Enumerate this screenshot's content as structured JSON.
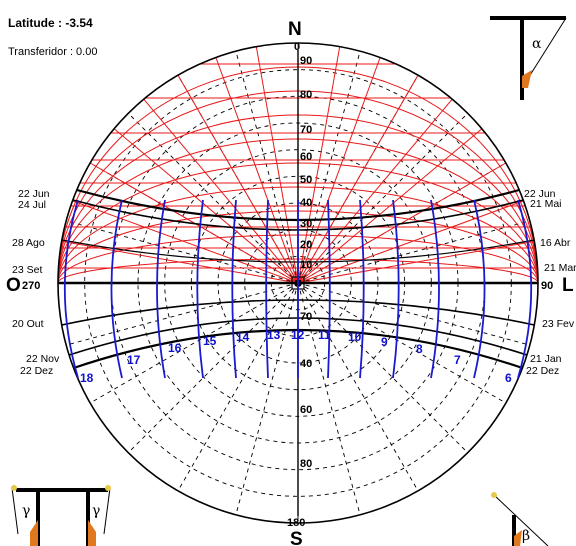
{
  "header": {
    "latitude_text": "Latitude :  -3.54",
    "protractor_text": "Transferidor : 0.00"
  },
  "cardinals": {
    "north": "N",
    "south": "S",
    "west": "O",
    "east": "L"
  },
  "azimuth_labels": {
    "north": "0",
    "south": "180",
    "west": "270",
    "east": "90"
  },
  "vertical_scale_labels": [
    "90",
    "80",
    "70",
    "60",
    "50",
    "40",
    "30",
    "20",
    "10",
    "70",
    "40",
    "60",
    "80"
  ],
  "date_labels_left": [
    "22 Jun",
    "24 Jul",
    "28 Ago",
    "23 Set",
    "20 Out",
    "22 Nov",
    "22 Dez"
  ],
  "date_labels_right": [
    "22 Jun",
    "21 Mai",
    "16 Abr",
    "21 Mar",
    "23 Fev",
    "21 Jan",
    "22 Dez"
  ],
  "hour_labels": [
    "18",
    "17",
    "16",
    "15",
    "14",
    "13",
    "12",
    "11",
    "10",
    "9",
    "8",
    "7",
    "6"
  ],
  "angle_symbols": {
    "alpha": "α",
    "beta": "β",
    "gamma": "γ"
  },
  "colors": {
    "protractor_lines": "#e81818",
    "solar_paths": "#000000",
    "hour_lines": "#1a1ad0",
    "grid_dashes": "#000000",
    "wedge": "#e0781e"
  },
  "icons": [
    "alpha-angle-icon",
    "beta-angle-icon",
    "gamma-angle-icon"
  ]
}
